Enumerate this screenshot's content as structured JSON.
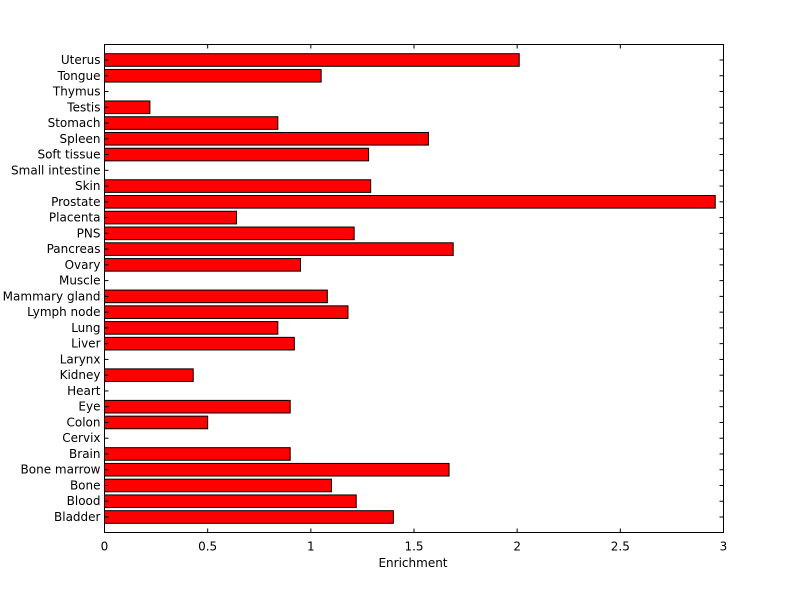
{
  "chart_data": {
    "type": "bar",
    "orientation": "horizontal",
    "title": "",
    "xlabel": "Enrichment",
    "ylabel": "",
    "xlim": [
      0,
      3
    ],
    "xticks": [
      "0",
      "0.5",
      "1",
      "1.5",
      "2",
      "2.5",
      "3"
    ],
    "grid": false,
    "bar_color": "#ff0000",
    "edge_color": "#000000",
    "categories": [
      "Bladder",
      "Blood",
      "Bone",
      "Bone marrow",
      "Brain",
      "Cervix",
      "Colon",
      "Eye",
      "Heart",
      "Kidney",
      "Larynx",
      "Liver",
      "Lung",
      "Lymph node",
      "Mammary gland",
      "Muscle",
      "Ovary",
      "Pancreas",
      "PNS",
      "Placenta",
      "Prostate",
      "Skin",
      "Small intestine",
      "Soft tissue",
      "Spleen",
      "Stomach",
      "Testis",
      "Thymus",
      "Tongue",
      "Uterus"
    ],
    "values": [
      1.4,
      1.22,
      1.1,
      1.67,
      0.9,
      0,
      0.5,
      0.9,
      0,
      0.43,
      0,
      0.92,
      0.84,
      1.18,
      1.08,
      0,
      0.95,
      1.69,
      1.21,
      0.64,
      2.96,
      1.29,
      0,
      1.28,
      1.57,
      0.84,
      0.22,
      0,
      1.05,
      2.01
    ]
  }
}
